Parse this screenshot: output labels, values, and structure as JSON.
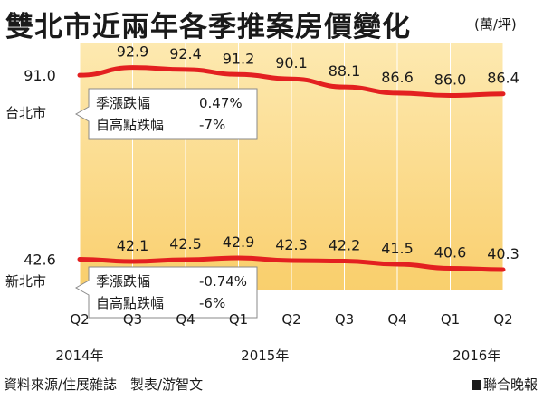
{
  "title": "雙北市近兩年各季推案房價變化",
  "unit": "(萬/坪)",
  "source": "資料來源/住展雜誌　製表/游智文",
  "credit": "聯合晚報",
  "colors": {
    "line": "#e32020",
    "fill_top": "#fde9b0",
    "fill_bottom": "#f9cf6e",
    "grid": "#ffffff"
  },
  "chart_data": {
    "type": "line",
    "categories": [
      "Q2",
      "Q3",
      "Q4",
      "Q1",
      "Q2",
      "Q3",
      "Q4",
      "Q1",
      "Q2"
    ],
    "years": [
      {
        "label": "2014年",
        "category_index": 0
      },
      {
        "label": "2015年",
        "category_index": 3.5
      },
      {
        "label": "2016年",
        "category_index": 7.5
      }
    ],
    "series": [
      {
        "name": "台北市",
        "values": [
          91.0,
          92.9,
          92.4,
          91.2,
          90.1,
          88.1,
          86.6,
          86.0,
          86.4
        ],
        "labels": [
          "91.0",
          "92.9",
          "92.4",
          "91.2",
          "90.1",
          "88.1",
          "86.6",
          "86.0",
          "86.4"
        ],
        "stats": [
          {
            "label": "季漲跌幅",
            "value": "0.47%"
          },
          {
            "label": "自高點跌幅",
            "value": "-7%"
          }
        ]
      },
      {
        "name": "新北市",
        "values": [
          42.6,
          42.1,
          42.5,
          42.9,
          42.3,
          42.2,
          41.5,
          40.6,
          40.3
        ],
        "labels": [
          "42.6",
          "42.1",
          "42.5",
          "42.9",
          "42.3",
          "42.2",
          "41.5",
          "40.6",
          "40.3"
        ],
        "stats": [
          {
            "label": "季漲跌幅",
            "value": "-0.74%"
          },
          {
            "label": "自高點跌幅",
            "value": "-6%"
          }
        ]
      }
    ],
    "grid": true
  }
}
